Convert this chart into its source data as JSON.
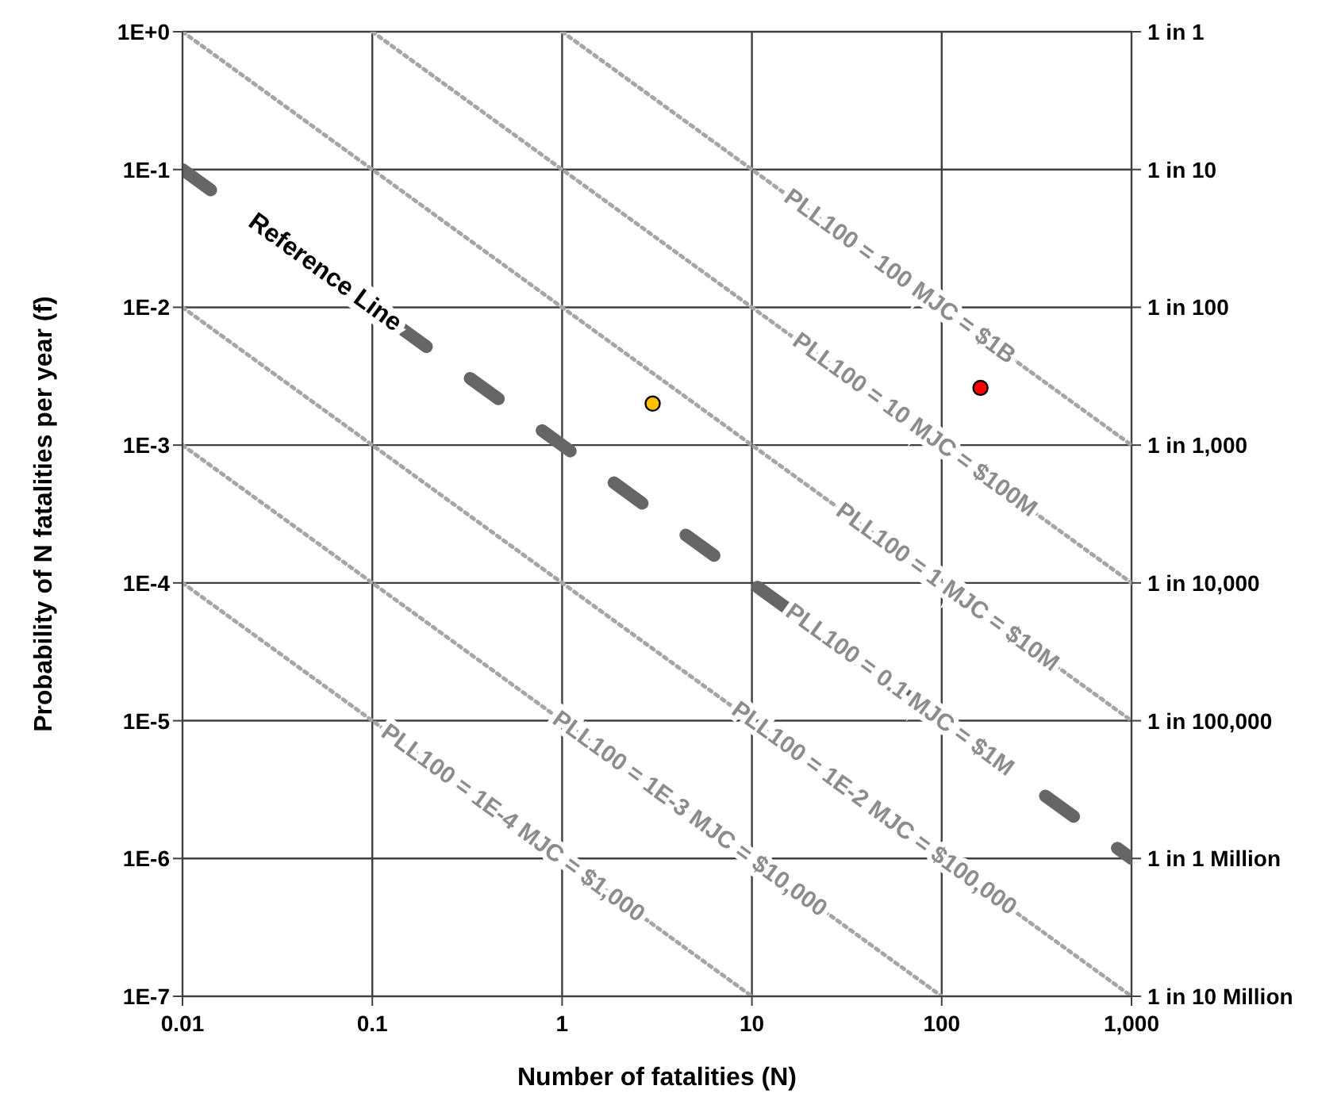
{
  "chart_data": {
    "type": "line",
    "xlabel": "Number of fatalities (N)",
    "ylabel": "Probability of N fatalities per year (f)",
    "log": "xy",
    "grid": true,
    "legend": false,
    "xlim": [
      0.01,
      1000
    ],
    "xticks": [
      0.01,
      0.1,
      1,
      10,
      100,
      {
        "value": 1000,
        "label": "1,000"
      }
    ],
    "ylim": [
      1e-07,
      1
    ],
    "yticks": [
      {
        "value": 1e-07,
        "label": "1E-7"
      },
      {
        "value": 1e-06,
        "label": "1E-6"
      },
      {
        "value": 1e-05,
        "label": "1E-5"
      },
      {
        "value": 0.0001,
        "label": "1E-4"
      },
      {
        "value": 0.001,
        "label": "1E-3"
      },
      {
        "value": 0.01,
        "label": "1E-2"
      },
      {
        "value": 0.1,
        "label": "1E-1"
      },
      {
        "value": 1,
        "label": "1E+0"
      }
    ],
    "series": [
      {
        "color": "#a6a6a6",
        "line_style": "dotted",
        "marker": "none",
        "x": [
          1,
          1000
        ],
        "values": [
          1,
          0.001
        ]
      },
      {
        "color": "#a6a6a6",
        "line_style": "dotted",
        "marker": "none",
        "x": [
          0.1,
          1000
        ],
        "values": [
          1,
          0.0001
        ]
      },
      {
        "color": "#a6a6a6",
        "line_style": "dotted",
        "marker": "none",
        "x": [
          0.01,
          1000
        ],
        "values": [
          1,
          1e-05
        ]
      },
      {
        "color": "#a6a6a6",
        "line_style": "dotted",
        "marker": "none",
        "x": [
          0.01,
          1000
        ],
        "values": [
          0.01,
          1e-07
        ]
      },
      {
        "color": "#a6a6a6",
        "line_style": "dotted",
        "marker": "none",
        "x": [
          0.01,
          100
        ],
        "values": [
          0.001,
          1e-07
        ]
      },
      {
        "color": "#a6a6a6",
        "line_style": "dotted",
        "marker": "none",
        "x": [
          0.01,
          10
        ],
        "values": [
          0.0001,
          1e-07
        ]
      },
      {
        "name": "Reference Line",
        "color": "#666666",
        "line_style": "dashed",
        "marker": "none",
        "x": [
          0.01,
          1000
        ],
        "values": [
          0.1,
          1e-06
        ]
      },
      {
        "type": "scatter",
        "marker": "circle",
        "colors": [
          "#ffc000",
          "#ff0000"
        ],
        "x": [
          3,
          160
        ],
        "values": [
          0.002,
          0.0026
        ]
      }
    ],
    "annotations": [
      {
        "text": "PLL100 = 100  MJC = $1B",
        "x": 60,
        "y": 0.0167
      },
      {
        "text": "PLL100 = 10  MJC = $100M",
        "x": 72,
        "y": 0.0014
      },
      {
        "text": "PLL100 = 1  MJC = $10M",
        "x": 107,
        "y": 9.3e-05
      },
      {
        "text": "PLL100 = 0.1  MJC = $1M",
        "x": 60,
        "y": 1.67e-05
      },
      {
        "text": "PLL100 = 1E-2  MJC = $100,000",
        "x": 44,
        "y": 2.3e-06
      },
      {
        "text": "PLL100 = 1E-3  MJC = $10,000",
        "x": 4.7,
        "y": 2.1e-06
      },
      {
        "text": "PLL100 = 1E-4  MJC = $1,000",
        "x": 0.55,
        "y": 1.8e-06
      },
      "1 in 1",
      "1 in 10",
      "1 in 100",
      "1 in 1,000",
      "1 in 10,000",
      "1 in 100,000",
      "1 in 1 Million",
      "1 in 10 Million"
    ]
  }
}
